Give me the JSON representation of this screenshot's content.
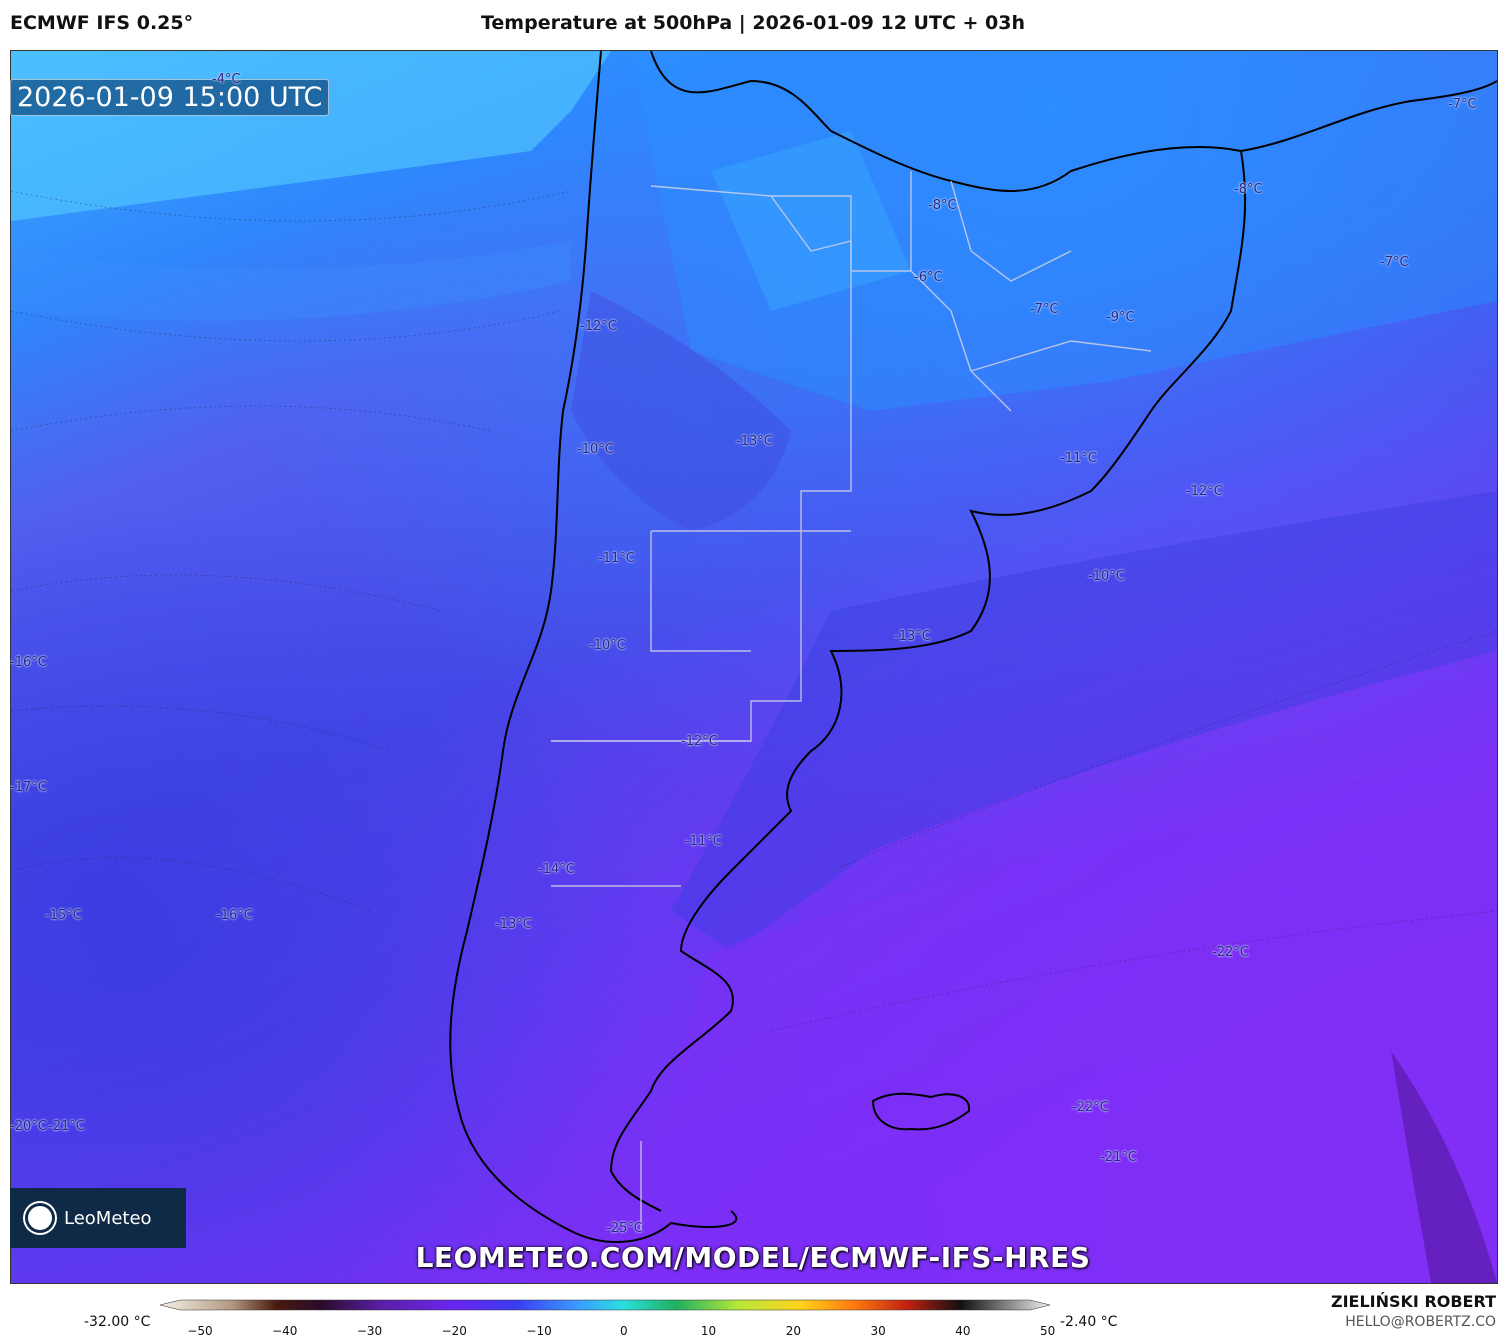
{
  "header": {
    "model": "ECMWF IFS 0.25°",
    "title": "Temperature at 500hPa | 2026-01-09 12 UTC + 03h"
  },
  "timestamp": "2026-01-09 15:00 UTC",
  "logo": {
    "name": "LeoMeteo"
  },
  "watermark": "LEOMETEO.COM/MODEL/ECMWF-IFS-HRES",
  "footer": {
    "author": "ZIELIŃSKI ROBERT",
    "email": "HELLO@ROBERTZ.CO"
  },
  "legend": {
    "min_label": "-32.00 °C",
    "max_label": "-2.40 °C",
    "ticks": [
      "−50",
      "−40",
      "−30",
      "−20",
      "−10",
      "0",
      "10",
      "20",
      "30",
      "40",
      "50"
    ],
    "range": [
      -50,
      55
    ]
  },
  "isotherm_labels": [
    {
      "text": "-4°C"
    },
    {
      "text": "-7°C"
    },
    {
      "text": "-8°C"
    },
    {
      "text": "-8°C"
    },
    {
      "text": "-7°C"
    },
    {
      "text": "-6°C"
    },
    {
      "text": "-7°C"
    },
    {
      "text": "-9°C"
    },
    {
      "text": "-12°C"
    },
    {
      "text": "-13°C"
    },
    {
      "text": "-10°C"
    },
    {
      "text": "-11°C"
    },
    {
      "text": "-12°C"
    },
    {
      "text": "-11°C"
    },
    {
      "text": "-10°C"
    },
    {
      "text": "-10°C"
    },
    {
      "text": "-13°C"
    },
    {
      "text": "-16°C"
    },
    {
      "text": "-12°C"
    },
    {
      "text": "-17°C"
    },
    {
      "text": "-11°C"
    },
    {
      "text": "-14°C"
    },
    {
      "text": "-15°C"
    },
    {
      "text": "-16°C"
    },
    {
      "text": "-13°C"
    },
    {
      "text": "-22°C"
    },
    {
      "text": "-20°C"
    },
    {
      "text": "-21°C"
    },
    {
      "text": "-22°C"
    },
    {
      "text": "-21°C"
    },
    {
      "text": "-25°C"
    }
  ]
}
